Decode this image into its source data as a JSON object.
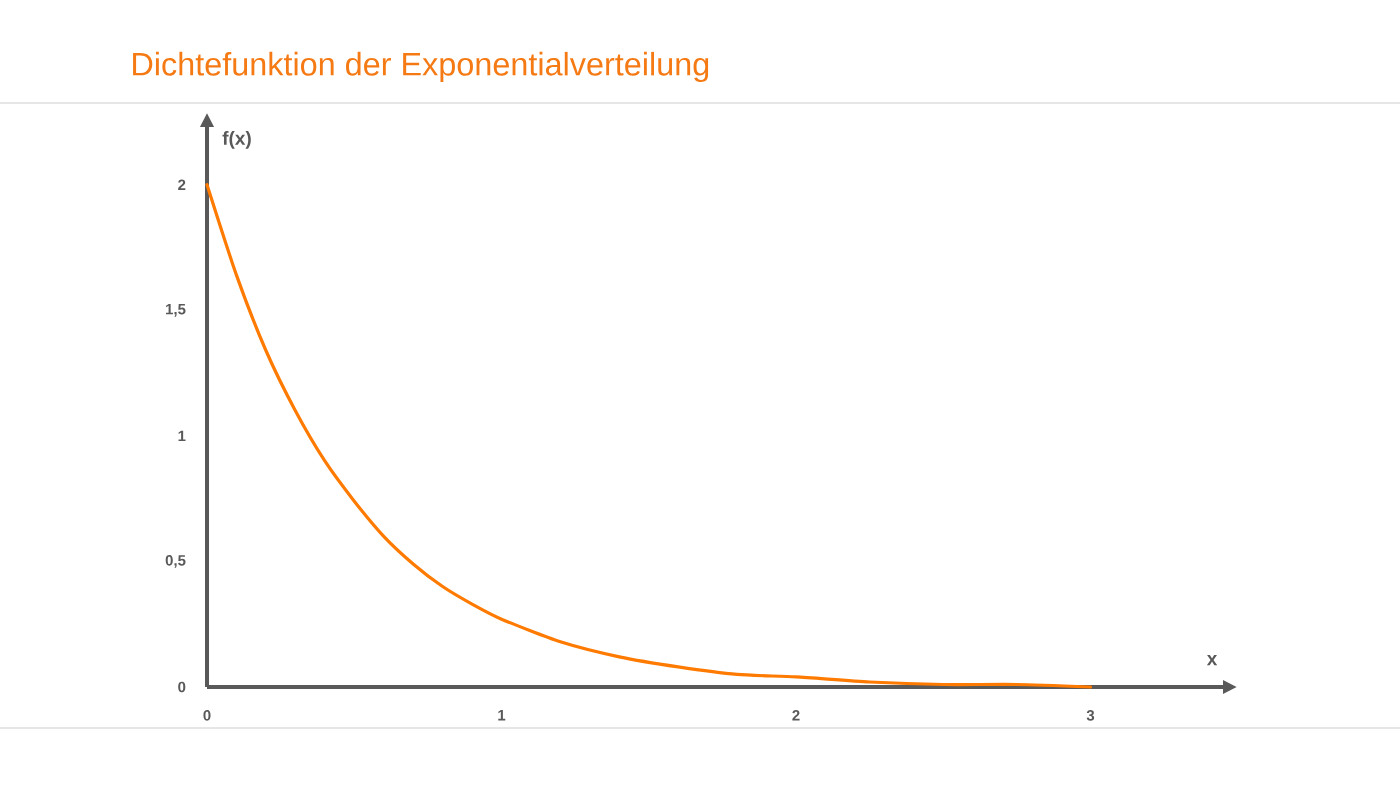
{
  "chart_data": {
    "type": "line",
    "title": "Dichtefunktion der Exponentialverteilung",
    "xlabel": "x",
    "ylabel": "f(x)",
    "x": [
      0,
      0.1,
      0.2,
      0.3,
      0.4,
      0.5,
      0.6,
      0.7,
      0.8,
      0.9,
      1.0,
      1.2,
      1.4,
      1.6,
      1.8,
      2.0,
      2.25,
      2.5,
      2.75,
      3.0
    ],
    "values": [
      2.0,
      1.64,
      1.34,
      1.1,
      0.9,
      0.74,
      0.6,
      0.49,
      0.4,
      0.33,
      0.27,
      0.18,
      0.12,
      0.08,
      0.05,
      0.04,
      0.02,
      0.01,
      0.01,
      0.0
    ],
    "color": "#ff7a00",
    "marker": "none",
    "line_style": "solid",
    "xlim": [
      0,
      3.45
    ],
    "ylim": [
      0,
      2.23
    ],
    "xticks": [
      0,
      1,
      2,
      3
    ],
    "yticks": [
      0,
      {
        "value": 0.5,
        "label": "0,5"
      },
      1,
      {
        "value": 1.5,
        "label": "1,5"
      },
      2
    ]
  }
}
